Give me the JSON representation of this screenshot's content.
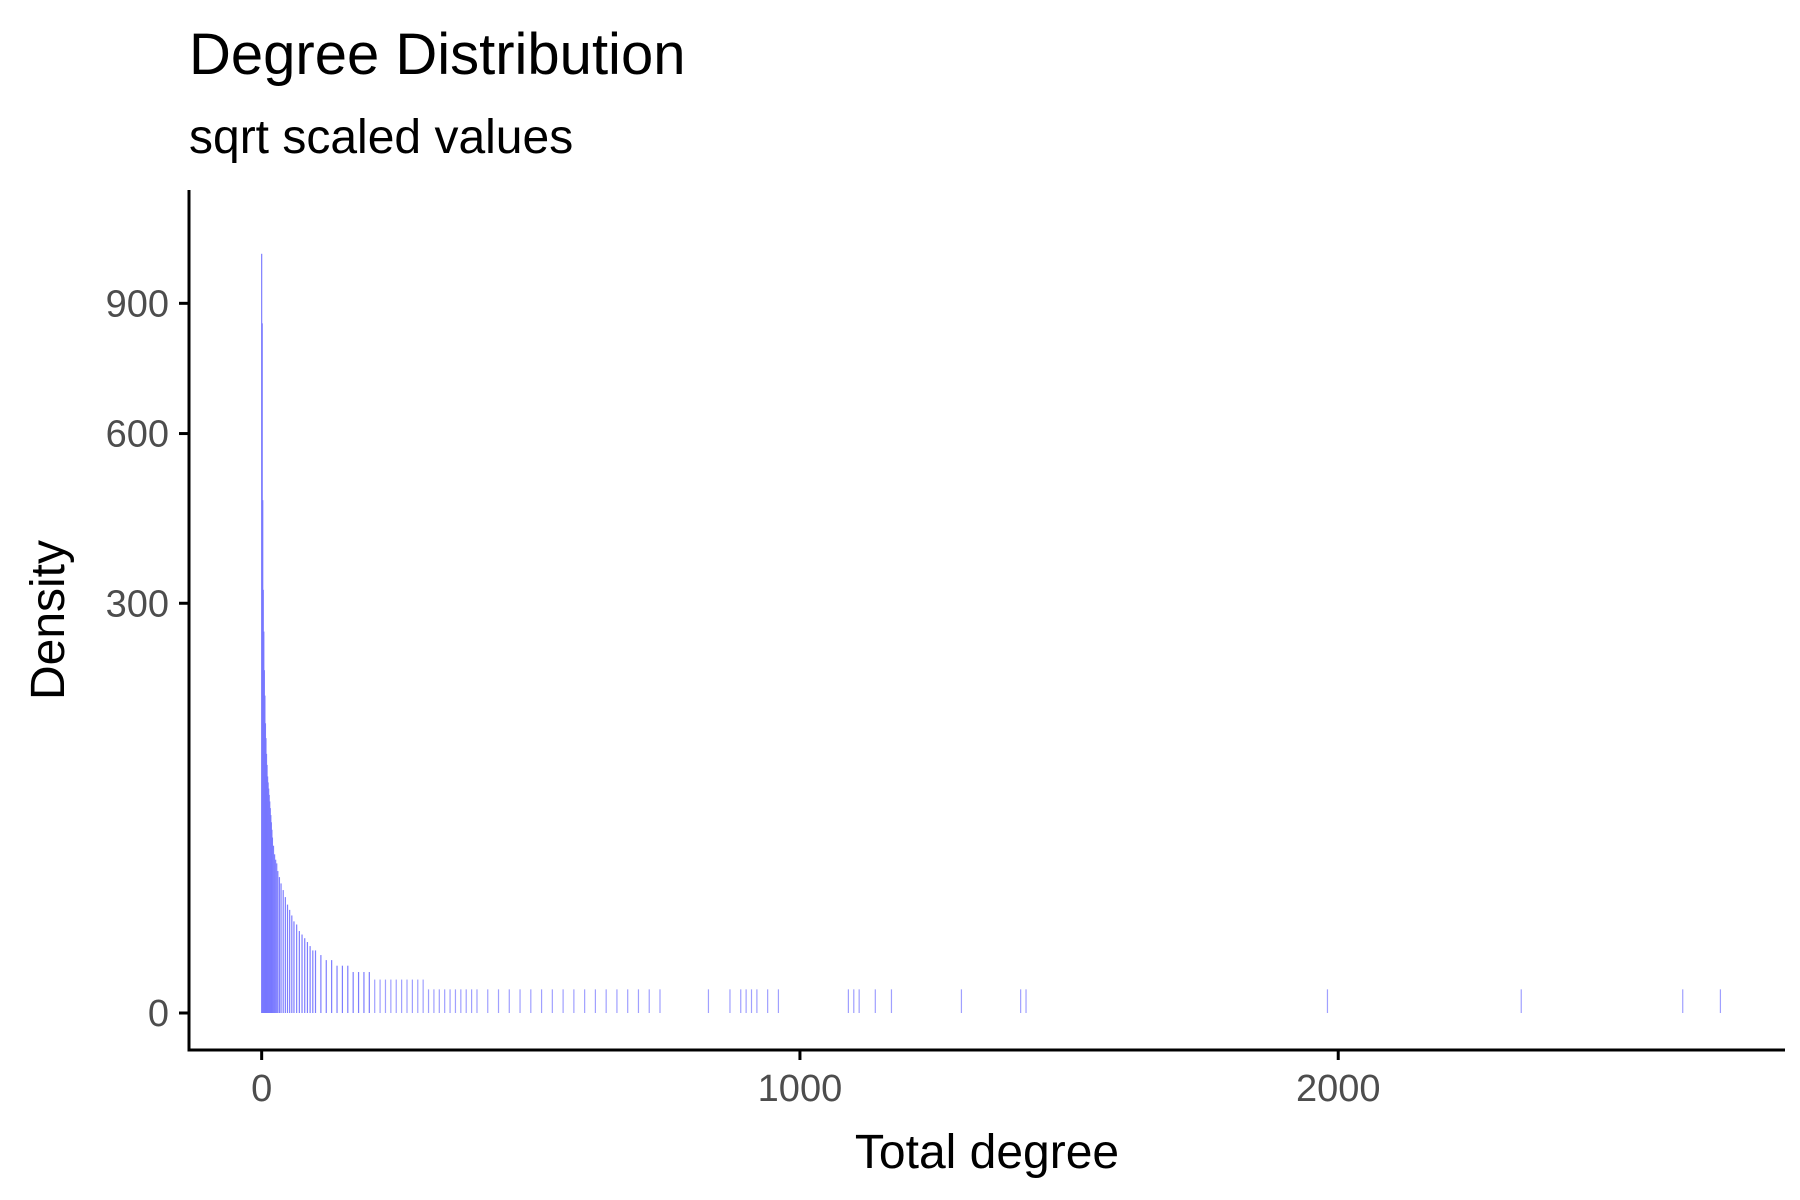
{
  "chart_data": {
    "type": "bar",
    "title": "Degree Distribution",
    "subtitle": "sqrt scaled values",
    "xlabel": "Total degree",
    "ylabel": "Density",
    "y_scale": "sqrt",
    "xlim": [
      -135,
      2830
    ],
    "ylim": [
      0,
      1090
    ],
    "x_ticks": [
      0,
      1000,
      2000
    ],
    "y_ticks": [
      0,
      300,
      600,
      900
    ],
    "grid": false,
    "bar_color": "#7777ff",
    "x": [
      0,
      1,
      2,
      3,
      4,
      5,
      6,
      7,
      8,
      9,
      10,
      11,
      12,
      13,
      14,
      15,
      16,
      17,
      18,
      19,
      20,
      22,
      24,
      26,
      28,
      30,
      33,
      36,
      40,
      44,
      48,
      52,
      56,
      60,
      65,
      70,
      75,
      80,
      85,
      90,
      95,
      100,
      110,
      120,
      130,
      140,
      150,
      160,
      170,
      180,
      190,
      200,
      210,
      220,
      230,
      240,
      250,
      260,
      270,
      280,
      290,
      300,
      310,
      320,
      330,
      340,
      350,
      360,
      370,
      380,
      390,
      400,
      420,
      440,
      460,
      480,
      500,
      520,
      540,
      560,
      580,
      600,
      620,
      640,
      660,
      680,
      700,
      720,
      740,
      830,
      870,
      890,
      900,
      910,
      920,
      940,
      960,
      1090,
      1100,
      1110,
      1140,
      1170,
      1300,
      1410,
      1420,
      1980,
      2340,
      2640,
      2710
    ],
    "values": [
      1030,
      850,
      470,
      320,
      260,
      210,
      180,
      150,
      135,
      120,
      110,
      100,
      95,
      90,
      85,
      80,
      75,
      70,
      65,
      60,
      55,
      50,
      45,
      42,
      40,
      36,
      33,
      30,
      27,
      24,
      21,
      19,
      17,
      15,
      14,
      12,
      11,
      10,
      9,
      8,
      7,
      7,
      6,
      5,
      5,
      4,
      4,
      4,
      3,
      3,
      3,
      3,
      2,
      2,
      2,
      2,
      2,
      2,
      2,
      2,
      2,
      2,
      1,
      1,
      1,
      1,
      1,
      1,
      1,
      1,
      1,
      1,
      1,
      1,
      1,
      1,
      1,
      1,
      1,
      1,
      1,
      1,
      1,
      1,
      1,
      1,
      1,
      1,
      1,
      1,
      1,
      1,
      1,
      1,
      1,
      1,
      1,
      1,
      1,
      1,
      1,
      1,
      1,
      1,
      1,
      1,
      1,
      1,
      1
    ]
  }
}
